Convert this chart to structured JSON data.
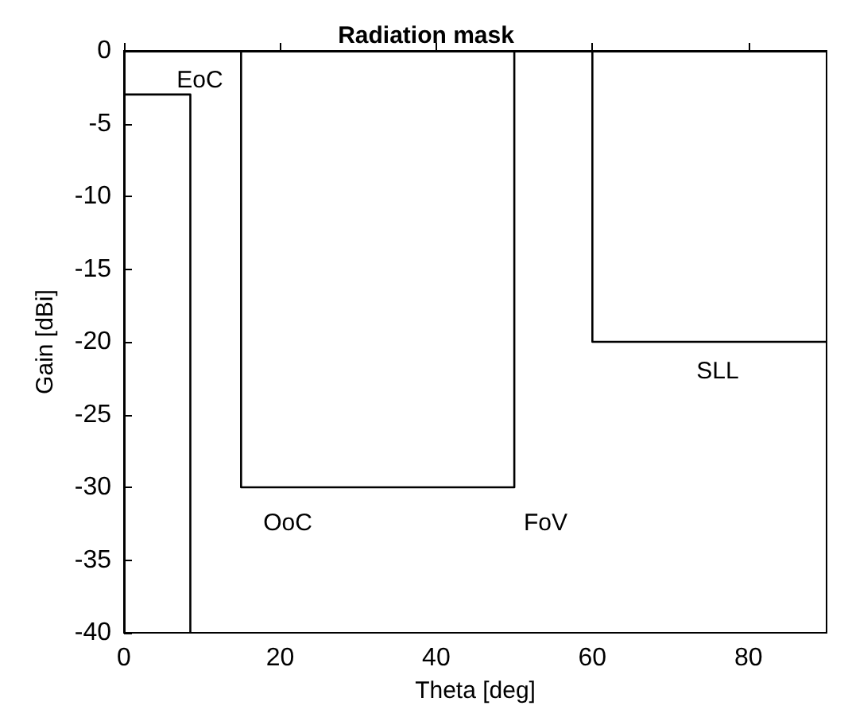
{
  "chart_data": {
    "type": "line",
    "title": "Radiation mask",
    "xlabel": "Theta [deg]",
    "ylabel": "Gain [dBi]",
    "series": [
      {
        "color": "#000000",
        "x": [
          0,
          8.5,
          8.5
        ],
        "values": [
          -3,
          -3,
          -40
        ]
      },
      {
        "color": "#000000",
        "x": [
          15,
          15,
          50,
          50
        ],
        "values": [
          0,
          -30,
          -30,
          0
        ]
      },
      {
        "color": "#000000",
        "x": [
          60,
          60,
          90
        ],
        "values": [
          0,
          -20,
          -20
        ]
      }
    ],
    "annotations": [
      "EoC",
      "OoC",
      "FoV",
      "SLL"
    ],
    "xlim": [
      0,
      90
    ],
    "xticks": [
      0,
      20,
      40,
      60,
      80
    ],
    "ylim": [
      -40,
      0
    ],
    "yticks": [
      -40,
      -35,
      -30,
      -25,
      -20,
      -15,
      -10,
      -5,
      0
    ],
    "grid": false,
    "marker": "none",
    "line_style": "solid"
  }
}
